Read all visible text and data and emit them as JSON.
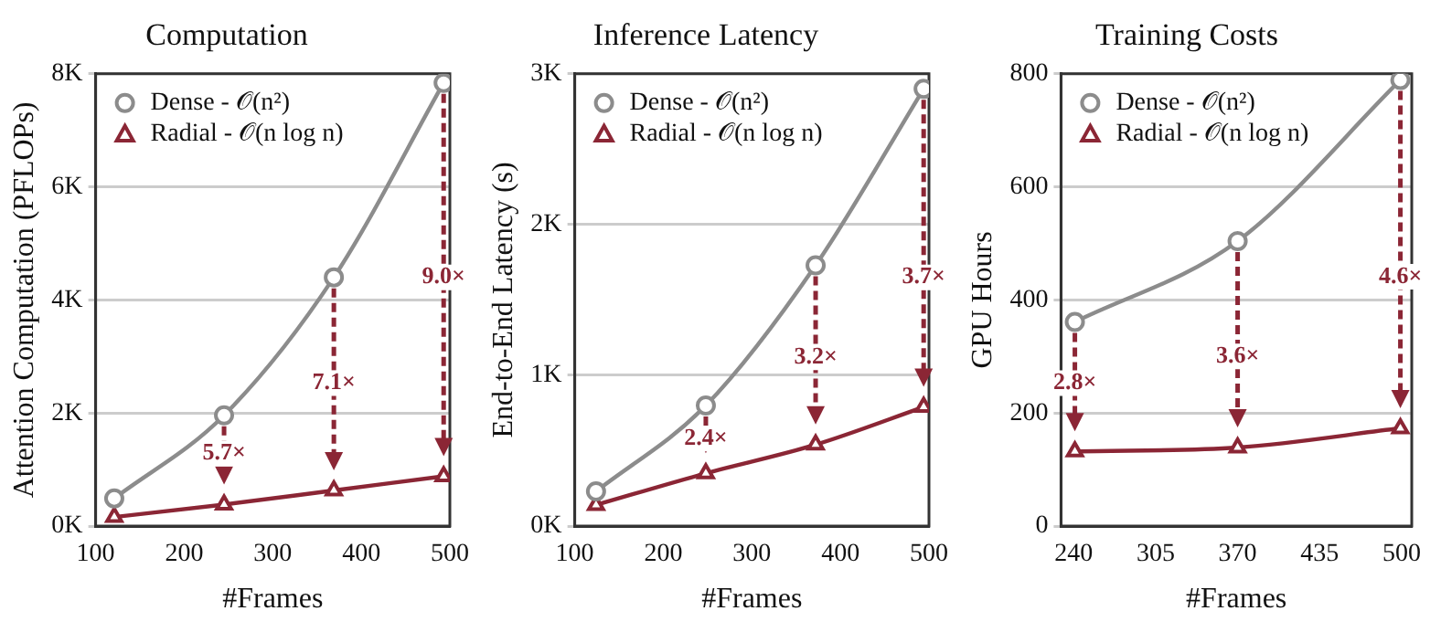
{
  "chart_data": [
    {
      "type": "line",
      "title": "Computation",
      "xlabel": "#Frames",
      "ylabel": "Attention Computation (PFLOPs)",
      "x": [
        121,
        245,
        369,
        493
      ],
      "series": [
        {
          "name": "Dense - 𝒪(n²)",
          "color": "#8c8c8c",
          "marker": "circle",
          "values": [
            490,
            1960,
            4400,
            7840
          ]
        },
        {
          "name": "Radial - 𝒪(n log n)",
          "color": "#8b2635",
          "marker": "triangle",
          "values": [
            160,
            380,
            630,
            880
          ]
        }
      ],
      "xlim": [
        100,
        500
      ],
      "xticks": [
        100,
        200,
        300,
        400,
        500
      ],
      "ylim": [
        0,
        8000
      ],
      "yticks": [
        {
          "value": 0,
          "label": "0K"
        },
        {
          "value": 2000,
          "label": "2K"
        },
        {
          "value": 4000,
          "label": "4K"
        },
        {
          "value": 6000,
          "label": "6K"
        },
        {
          "value": 8000,
          "label": "8K"
        }
      ],
      "grid": "y",
      "legend": "top left",
      "annotations": [
        {
          "text": "5.7×",
          "x": 245,
          "y": 1280
        },
        {
          "text": "7.1×",
          "x": 369,
          "y": 2530
        },
        {
          "text": "9.0×",
          "x": 493,
          "y": 4400
        }
      ]
    },
    {
      "type": "line",
      "title": "Inference Latency",
      "xlabel": "#Frames",
      "ylabel": "End-to-End Latency (s)",
      "x": [
        124,
        248,
        372,
        494
      ],
      "series": [
        {
          "name": "Dense - 𝒪(n²)",
          "color": "#8c8c8c",
          "marker": "circle",
          "values": [
            230,
            800,
            1730,
            2900
          ]
        },
        {
          "name": "Radial - 𝒪(n log n)",
          "color": "#8b2635",
          "marker": "triangle",
          "values": [
            140,
            350,
            540,
            790
          ]
        }
      ],
      "xlim": [
        100,
        500
      ],
      "xticks": [
        100,
        200,
        300,
        400,
        500
      ],
      "ylim": [
        0,
        3000
      ],
      "yticks": [
        {
          "value": 0,
          "label": "0K"
        },
        {
          "value": 1000,
          "label": "1K"
        },
        {
          "value": 2000,
          "label": "2K"
        },
        {
          "value": 3000,
          "label": "3K"
        }
      ],
      "grid": "y",
      "legend": "top left",
      "annotations": [
        {
          "text": "2.4×",
          "x": 248,
          "y": 580
        },
        {
          "text": "3.2×",
          "x": 372,
          "y": 1120
        },
        {
          "text": "3.7×",
          "x": 494,
          "y": 1650
        }
      ]
    },
    {
      "type": "line",
      "title": "Training Costs",
      "xlabel": "#Frames",
      "ylabel": "GPU Hours",
      "x": [
        241,
        370,
        499
      ],
      "series": [
        {
          "name": "Dense - 𝒪(n²)",
          "color": "#8c8c8c",
          "marker": "circle",
          "values": [
            361,
            504,
            789
          ]
        },
        {
          "name": "Radial - 𝒪(n log n)",
          "color": "#8b2635",
          "marker": "triangle",
          "values": [
            132,
            139,
            173
          ]
        }
      ],
      "xlim": [
        230,
        508
      ],
      "xticks": [
        240,
        305,
        370,
        435,
        500
      ],
      "ylim": [
        0,
        800
      ],
      "yticks": [
        0,
        200,
        400,
        600,
        800
      ],
      "grid": "y",
      "legend": "top left",
      "annotations": [
        {
          "text": "2.8×",
          "x": 241,
          "y": 253
        },
        {
          "text": "3.6×",
          "x": 370,
          "y": 300
        },
        {
          "text": "4.6×",
          "x": 499,
          "y": 441
        }
      ]
    }
  ]
}
